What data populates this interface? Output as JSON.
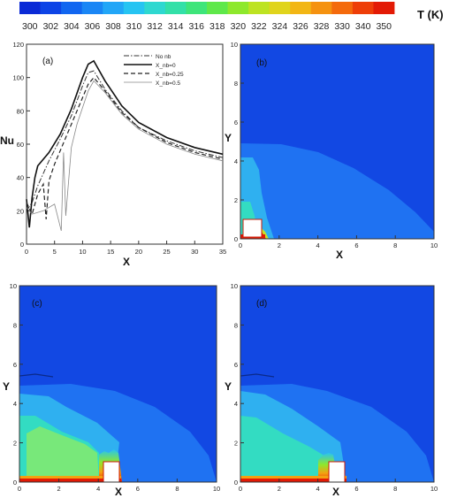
{
  "colorbar": {
    "ticks": [
      "300",
      "302",
      "304",
      "306",
      "308",
      "310",
      "312",
      "314",
      "316",
      "318",
      "320",
      "322",
      "324",
      "326",
      "328",
      "330",
      "340",
      "350"
    ],
    "colors": [
      "#0a2ad6",
      "#0d44e6",
      "#1166f0",
      "#1a86f5",
      "#22a6f7",
      "#26c4f2",
      "#2ed8d0",
      "#33e0a8",
      "#3ee57a",
      "#5fe84a",
      "#8ee82c",
      "#bde322",
      "#e0d41c",
      "#f2b615",
      "#f59210",
      "#f46a0c",
      "#ee3e08",
      "#e31a05"
    ],
    "label": "T (K)"
  },
  "panel_a": {
    "tag": "(a)",
    "xlabel": "X",
    "ylabel": "Nu",
    "legend": [
      {
        "label": "No nb",
        "dash": "6,2,1.5,2",
        "width": 1
      },
      {
        "label": "X_nb=0",
        "dash": "",
        "width": 1.6
      },
      {
        "label": "X_nb=0.25",
        "dash": "5,3",
        "width": 1.2
      },
      {
        "label": "X_nb=0.5",
        "dash": "",
        "width": 0.8
      }
    ]
  },
  "contours": {
    "tag_b": "(b)",
    "tag_c": "(c)",
    "tag_d": "(d)",
    "xlabel": "X",
    "ylabel": "Y"
  },
  "chart_data": {
    "type": "line",
    "xlabel": "X",
    "ylabel": "Nu",
    "xlim": [
      0,
      35
    ],
    "ylim": [
      0,
      120
    ],
    "xticks": [
      0,
      5,
      10,
      15,
      20,
      25,
      30,
      35
    ],
    "yticks": [
      0,
      20,
      40,
      60,
      80,
      100,
      120
    ],
    "legend_position": "top-right",
    "series": [
      {
        "name": "No nb",
        "x": [
          0,
          1,
          2,
          4,
          6,
          8,
          10,
          11,
          12,
          14,
          17,
          20,
          25,
          30,
          35
        ],
        "y": [
          20,
          25,
          35,
          50,
          63,
          77,
          95,
          103,
          104,
          93,
          80,
          70,
          62,
          56,
          52
        ]
      },
      {
        "name": "X_nb=0",
        "x": [
          0,
          0.5,
          1,
          1.5,
          2,
          4,
          6,
          8,
          10,
          11,
          12,
          14,
          17,
          20,
          25,
          30,
          35
        ],
        "y": [
          27,
          10,
          28,
          40,
          47,
          55,
          66,
          81,
          100,
          108,
          110,
          98,
          83,
          73,
          64,
          58,
          54
        ]
      },
      {
        "name": "X_nb=0.25",
        "x": [
          0,
          1,
          2,
          3,
          3.5,
          4,
          5,
          7,
          9,
          11,
          12,
          14,
          17,
          20,
          25,
          30,
          35
        ],
        "y": [
          25,
          18,
          30,
          36,
          15,
          38,
          48,
          64,
          80,
          96,
          100,
          92,
          79,
          70,
          61,
          55,
          51
        ]
      },
      {
        "name": "X_nb=0.5",
        "x": [
          0,
          1,
          3,
          5,
          6.2,
          6.6,
          7,
          8,
          9,
          11,
          12,
          14,
          17,
          20,
          25,
          30,
          35
        ],
        "y": [
          22,
          18,
          20,
          24,
          8,
          55,
          17,
          58,
          72,
          92,
          98,
          91,
          78,
          69,
          60,
          54,
          50
        ]
      }
    ],
    "annotations": [
      "(a)"
    ]
  },
  "contour_axes": {
    "xlim": [
      0,
      10
    ],
    "ylim": [
      0,
      10
    ],
    "xticks": [
      0,
      2,
      4,
      6,
      8,
      10
    ],
    "yticks": [
      0,
      2,
      4,
      6,
      8,
      10
    ]
  }
}
